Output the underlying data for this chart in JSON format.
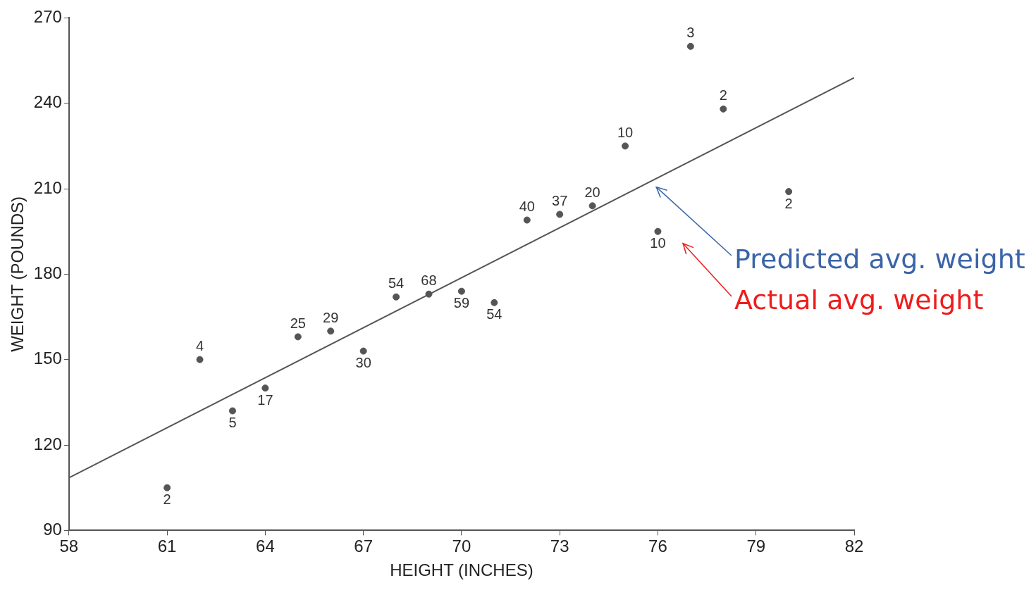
{
  "chart_data": {
    "type": "scatter",
    "xlabel": "HEIGHT (INCHES)",
    "ylabel": "WEIGHT (POUNDS)",
    "xlim": [
      58,
      82
    ],
    "xticks": [
      58,
      61,
      64,
      67,
      70,
      73,
      76,
      79,
      82
    ],
    "ylim": [
      90,
      270
    ],
    "yticks": [
      90,
      120,
      150,
      180,
      210,
      240,
      270
    ],
    "grid": false,
    "legend": false,
    "series": [
      {
        "type": "scatter",
        "color": "#555555",
        "marker": "circle",
        "x": [
          61,
          62,
          63,
          64,
          65,
          66,
          67,
          68,
          69,
          70,
          71,
          72,
          73,
          74,
          75,
          76,
          77,
          78,
          80
        ],
        "values": [
          105,
          150,
          132,
          140,
          158,
          160,
          153,
          172,
          173,
          174,
          170,
          199,
          201,
          204,
          225,
          195,
          260,
          238,
          209
        ]
      },
      {
        "type": "line",
        "color": "#555555",
        "marker": "none",
        "x": [
          58,
          82
        ],
        "values": [
          108.5,
          249
        ]
      }
    ],
    "annotations": [
      {
        "text": "2",
        "x": 61,
        "y": 105
      },
      {
        "text": "4",
        "x": 62,
        "y": 150
      },
      {
        "text": "5",
        "x": 63,
        "y": 132
      },
      {
        "text": "17",
        "x": 64,
        "y": 140
      },
      {
        "text": "25",
        "x": 65,
        "y": 158
      },
      {
        "text": "29",
        "x": 66,
        "y": 160
      },
      {
        "text": "30",
        "x": 67,
        "y": 153
      },
      {
        "text": "54",
        "x": 68,
        "y": 172
      },
      {
        "text": "68",
        "x": 69,
        "y": 173
      },
      {
        "text": "59",
        "x": 70,
        "y": 174
      },
      {
        "text": "54",
        "x": 71,
        "y": 170
      },
      {
        "text": "40",
        "x": 72,
        "y": 199
      },
      {
        "text": "37",
        "x": 73,
        "y": 201
      },
      {
        "text": "20",
        "x": 74,
        "y": 204
      },
      {
        "text": "10",
        "x": 75,
        "y": 225
      },
      {
        "text": "10",
        "x": 76,
        "y": 195
      },
      {
        "text": "3",
        "x": 77,
        "y": 260
      },
      {
        "text": "2",
        "x": 78,
        "y": 238
      },
      {
        "text": "2",
        "x": 80,
        "y": 209
      },
      "Predicted avg. weight",
      "Actual avg. weight"
    ]
  }
}
